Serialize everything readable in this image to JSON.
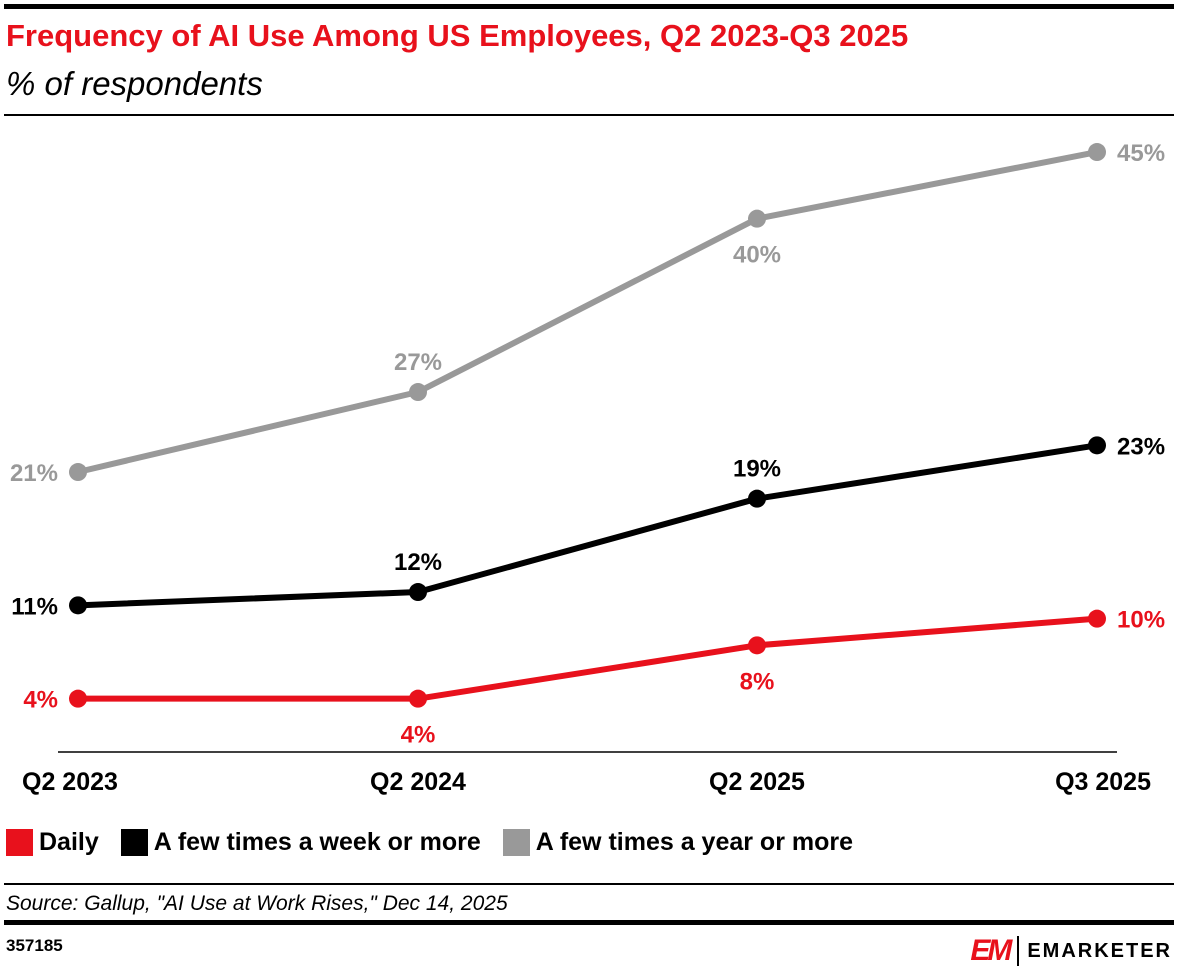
{
  "header": {
    "title": "Frequency of AI Use Among US Employees, Q2 2023-Q3 2025",
    "subtitle": "% of respondents"
  },
  "chart_data": {
    "type": "line",
    "categories": [
      "Q2 2023",
      "Q2 2024",
      "Q2 2025",
      "Q3 2025"
    ],
    "ylim": [
      0,
      50
    ],
    "grid": false,
    "legend_placement": "bottom-left",
    "series": [
      {
        "name": "Daily",
        "color": "#e8111c",
        "values": [
          4,
          4,
          8,
          10
        ],
        "labels": [
          "4%",
          "4%",
          "8%",
          "10%"
        ],
        "label_pos": [
          "left",
          "below",
          "below",
          "right"
        ]
      },
      {
        "name": "A few times a week or more",
        "color": "#000000",
        "values": [
          11,
          12,
          19,
          23
        ],
        "labels": [
          "11%",
          "12%",
          "19%",
          "23%"
        ],
        "label_pos": [
          "left",
          "above",
          "above",
          "right"
        ]
      },
      {
        "name": "A few times a year or more",
        "color": "#999999",
        "values": [
          21,
          27,
          40,
          45
        ],
        "labels": [
          "21%",
          "27%",
          "40%",
          "45%"
        ],
        "label_pos": [
          "left",
          "above",
          "below",
          "right"
        ]
      }
    ]
  },
  "footer": {
    "source": "Source: Gallup, \"AI Use at Work Rises,\" Dec 14, 2025",
    "chart_id": "357185",
    "logo_mark": "EM",
    "logo_name": "EMARKETER"
  }
}
